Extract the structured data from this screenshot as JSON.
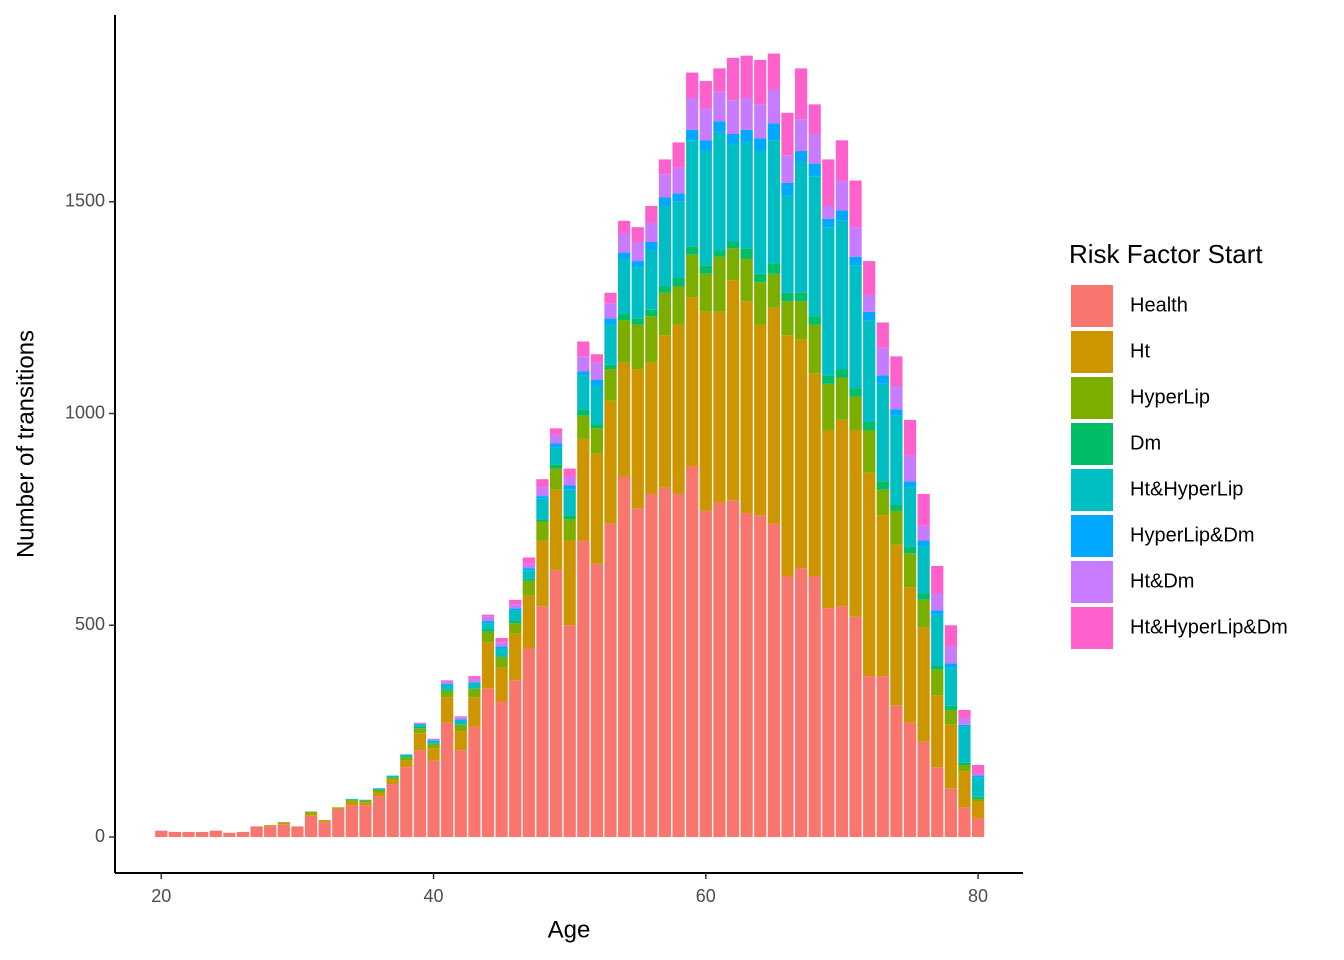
{
  "chart_data": {
    "type": "stacked_bar",
    "x_label": "Age",
    "y_label": "Number of transitions",
    "legend_title": "Risk Factor Start",
    "legend_position": "right",
    "x": [
      20,
      21,
      22,
      23,
      24,
      25,
      26,
      27,
      28,
      29,
      30,
      31,
      32,
      33,
      34,
      35,
      36,
      37,
      38,
      39,
      40,
      41,
      42,
      43,
      44,
      45,
      46,
      47,
      48,
      49,
      50,
      51,
      52,
      53,
      54,
      55,
      56,
      57,
      58,
      59,
      60,
      61,
      62,
      63,
      64,
      65,
      66,
      67,
      68,
      69,
      70,
      71,
      72,
      73,
      74,
      75,
      76,
      77,
      78,
      79,
      80
    ],
    "xlim": [
      16.6,
      83.3
    ],
    "xticks": [
      20,
      40,
      60,
      80
    ],
    "ylim": [
      -85,
      1941
    ],
    "yticks": [
      0,
      500,
      1000,
      1500
    ],
    "series": [
      {
        "name": "Health",
        "color": "#F8766D",
        "values": [
          15,
          12,
          12,
          12,
          15,
          10,
          12,
          25,
          25,
          30,
          25,
          50,
          35,
          65,
          75,
          75,
          95,
          125,
          165,
          205,
          180,
          270,
          205,
          260,
          350,
          320,
          370,
          445,
          545,
          630,
          500,
          700,
          645,
          740,
          850,
          775,
          810,
          825,
          810,
          875,
          770,
          790,
          795,
          765,
          760,
          740,
          615,
          635,
          615,
          540,
          545,
          520,
          380,
          380,
          310,
          270,
          225,
          165,
          115,
          70,
          45
        ]
      },
      {
        "name": "Ht",
        "color": "#CD9600",
        "values": [
          0,
          0,
          0,
          0,
          0,
          0,
          0,
          0,
          3,
          3,
          0,
          5,
          5,
          3,
          8,
          7,
          10,
          10,
          15,
          40,
          30,
          60,
          45,
          70,
          110,
          80,
          110,
          125,
          155,
          190,
          200,
          240,
          260,
          290,
          270,
          330,
          310,
          360,
          400,
          400,
          470,
          450,
          520,
          500,
          450,
          510,
          570,
          540,
          480,
          420,
          440,
          440,
          480,
          380,
          380,
          320,
          270,
          170,
          150,
          85,
          40
        ]
      },
      {
        "name": "HyperLip",
        "color": "#7CAE00",
        "values": [
          0,
          0,
          0,
          0,
          0,
          0,
          0,
          0,
          0,
          2,
          0,
          5,
          0,
          2,
          4,
          4,
          6,
          6,
          8,
          12,
          10,
          15,
          15,
          20,
          25,
          25,
          25,
          35,
          45,
          50,
          50,
          55,
          60,
          75,
          100,
          105,
          110,
          100,
          90,
          100,
          90,
          130,
          75,
          100,
          100,
          80,
          80,
          90,
          115,
          110,
          100,
          80,
          100,
          60,
          80,
          80,
          65,
          60,
          35,
          15,
          5
        ]
      },
      {
        "name": "Dm",
        "color": "#00BE67",
        "values": [
          0,
          0,
          0,
          0,
          0,
          0,
          0,
          0,
          0,
          0,
          0,
          0,
          0,
          0,
          1,
          0,
          0,
          0,
          2,
          3,
          0,
          3,
          0,
          0,
          5,
          0,
          5,
          5,
          5,
          10,
          10,
          15,
          10,
          10,
          15,
          15,
          15,
          15,
          20,
          20,
          20,
          15,
          15,
          25,
          20,
          25,
          20,
          20,
          20,
          20,
          20,
          20,
          20,
          20,
          15,
          15,
          15,
          10,
          10,
          5,
          5
        ]
      },
      {
        "name": "Ht&HyperLip",
        "color": "#00BFC4",
        "values": [
          0,
          0,
          0,
          0,
          0,
          0,
          0,
          0,
          0,
          0,
          0,
          0,
          0,
          0,
          2,
          2,
          4,
          4,
          5,
          5,
          8,
          12,
          10,
          15,
          15,
          20,
          25,
          20,
          50,
          40,
          60,
          80,
          90,
          95,
          130,
          120,
          140,
          190,
          180,
          250,
          270,
          280,
          230,
          250,
          290,
          290,
          230,
          310,
          330,
          350,
          350,
          290,
          240,
          230,
          210,
          140,
          110,
          120,
          90,
          85,
          45
        ]
      },
      {
        "name": "HyperLip&Dm",
        "color": "#00A9FF",
        "values": [
          0,
          0,
          0,
          0,
          0,
          0,
          0,
          0,
          0,
          0,
          0,
          0,
          0,
          0,
          0,
          0,
          0,
          0,
          0,
          2,
          0,
          2,
          3,
          0,
          5,
          5,
          5,
          5,
          5,
          10,
          10,
          10,
          15,
          15,
          15,
          15,
          20,
          20,
          20,
          25,
          25,
          25,
          25,
          30,
          30,
          40,
          30,
          25,
          30,
          20,
          25,
          20,
          20,
          20,
          15,
          15,
          15,
          10,
          10,
          5,
          5
        ]
      },
      {
        "name": "Ht&Dm",
        "color": "#C77CFF",
        "values": [
          0,
          0,
          0,
          0,
          0,
          0,
          0,
          0,
          0,
          0,
          0,
          0,
          0,
          0,
          0,
          0,
          0,
          0,
          0,
          3,
          4,
          5,
          5,
          8,
          10,
          10,
          10,
          10,
          20,
          20,
          20,
          35,
          40,
          35,
          45,
          45,
          45,
          55,
          60,
          75,
          75,
          70,
          80,
          75,
          80,
          80,
          65,
          75,
          70,
          30,
          70,
          70,
          40,
          65,
          55,
          60,
          35,
          40,
          40,
          15,
          5
        ]
      },
      {
        "name": "Ht&HyperLip&Dm",
        "color": "#FF61CC",
        "values": [
          0,
          0,
          0,
          0,
          0,
          0,
          0,
          0,
          0,
          0,
          0,
          0,
          0,
          0,
          0,
          0,
          0,
          0,
          0,
          0,
          0,
          3,
          2,
          7,
          5,
          10,
          10,
          15,
          20,
          15,
          20,
          35,
          20,
          25,
          30,
          35,
          40,
          35,
          60,
          60,
          65,
          55,
          100,
          100,
          105,
          85,
          100,
          120,
          70,
          110,
          95,
          110,
          80,
          60,
          70,
          85,
          75,
          65,
          50,
          20,
          20
        ]
      }
    ]
  }
}
